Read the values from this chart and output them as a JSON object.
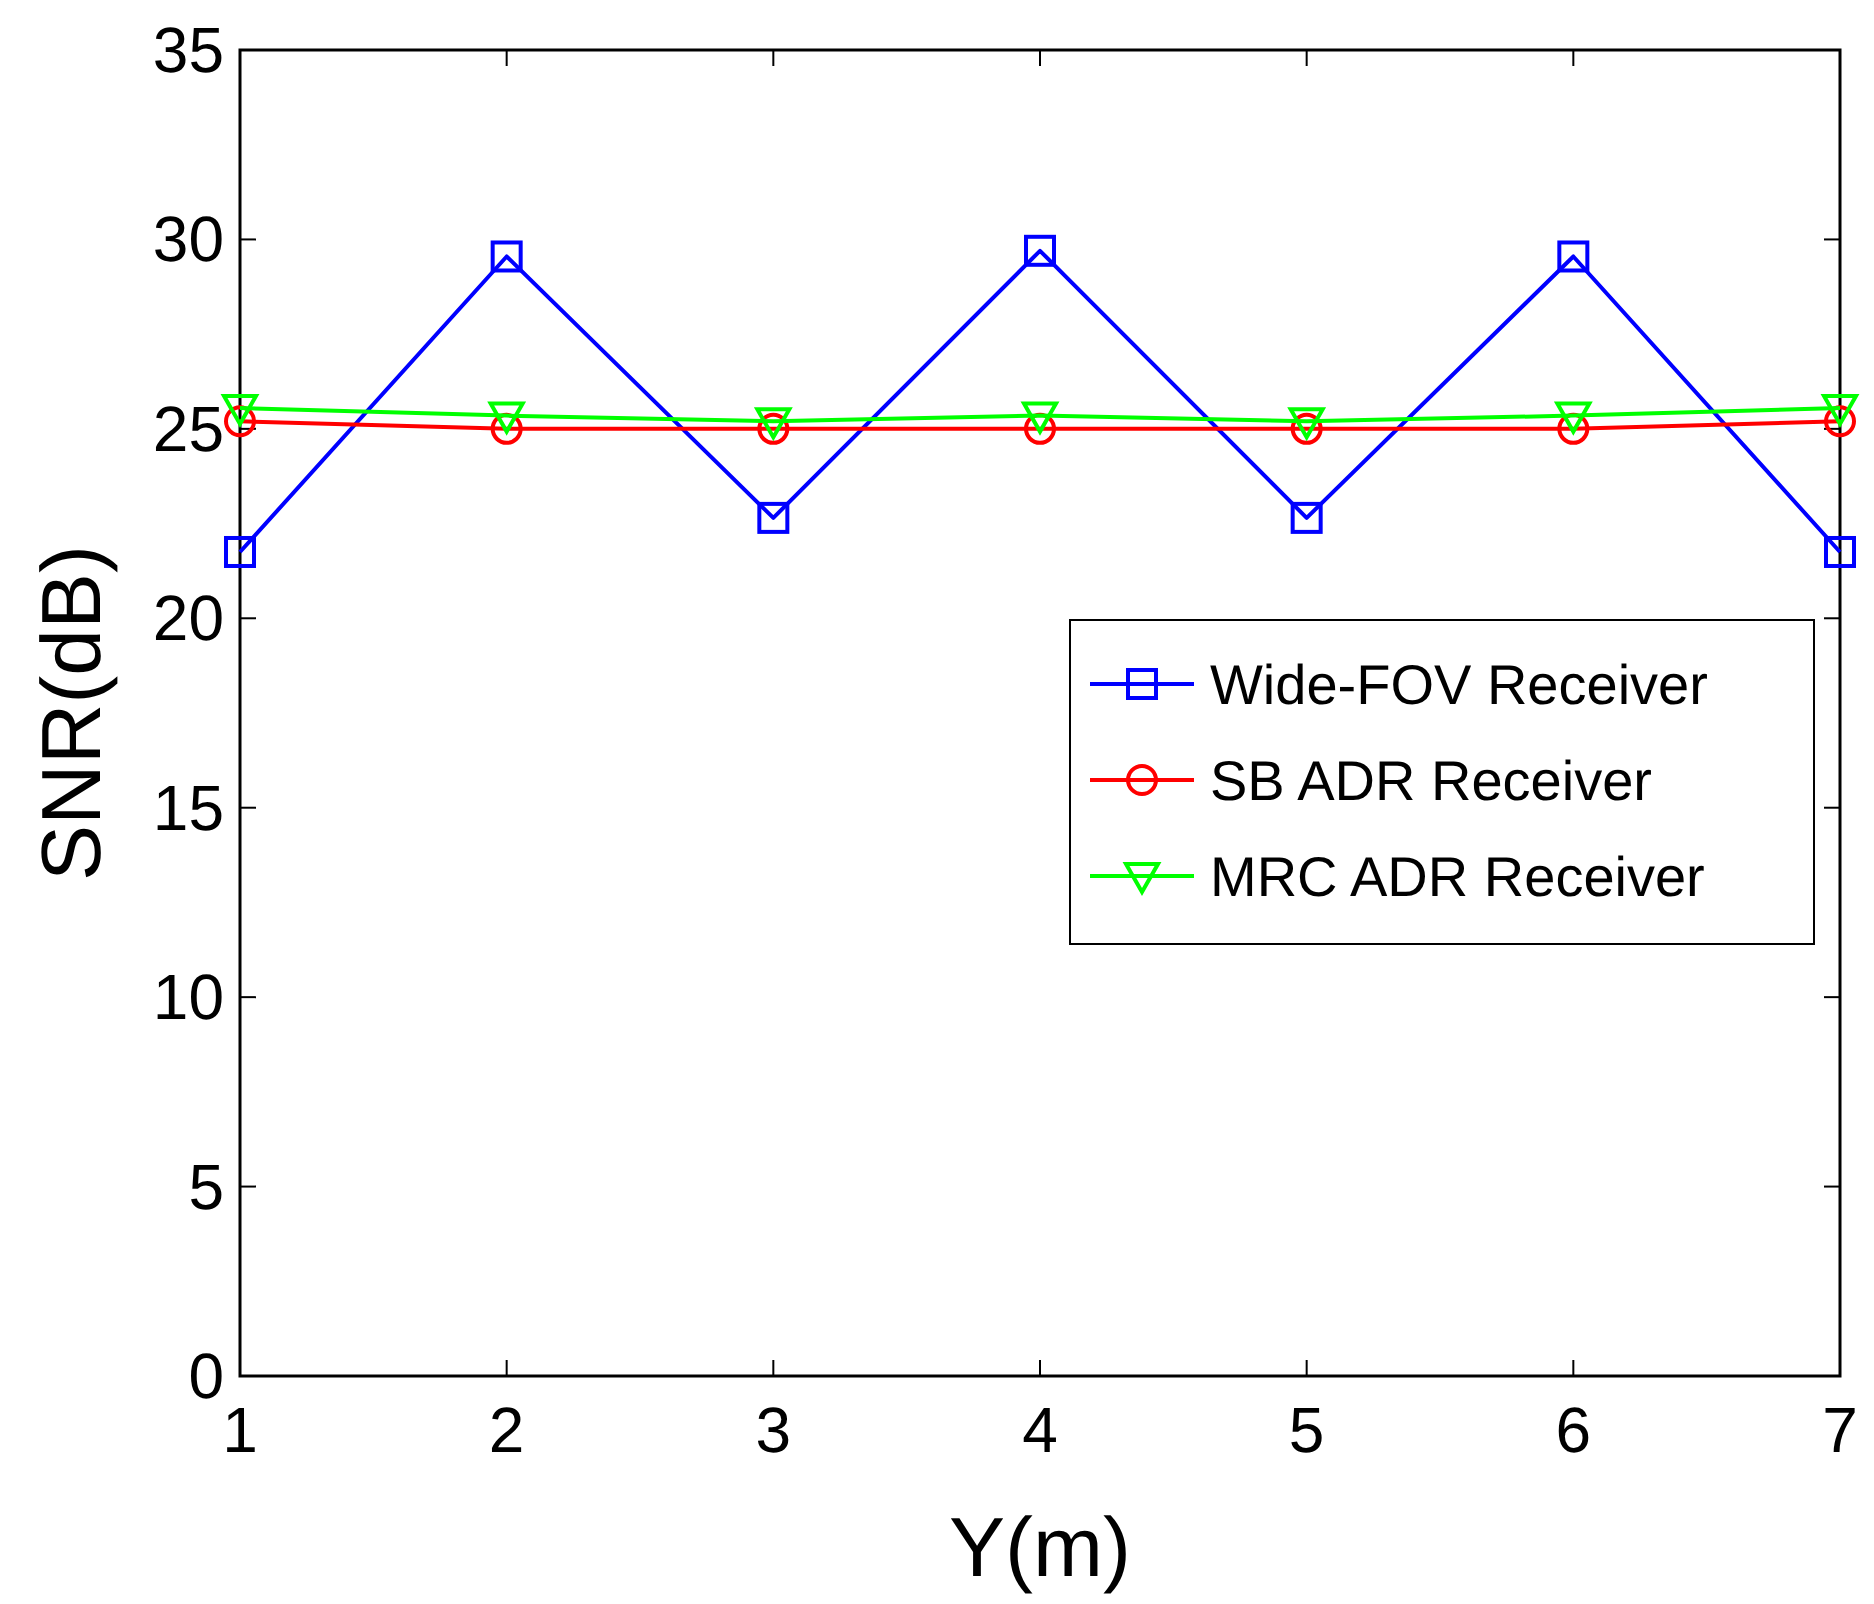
{
  "chart_data": {
    "type": "line",
    "xlabel": "Y(m)",
    "ylabel": "SNR(dB)",
    "x": [
      1,
      2,
      3,
      4,
      5,
      6,
      7
    ],
    "series": [
      {
        "name": "Wide-FOV Receiver",
        "color": "#0000ff",
        "marker": "square",
        "values": [
          21.75,
          29.55,
          22.65,
          29.7,
          22.65,
          29.55,
          21.75
        ]
      },
      {
        "name": "SB ADR Receiver",
        "color": "#ff0000",
        "marker": "circle",
        "values": [
          25.2,
          25.0,
          25.0,
          25.0,
          25.0,
          25.0,
          25.2
        ]
      },
      {
        "name": "MRC ADR Receiver",
        "color": "#00ff00",
        "marker": "triangle",
        "values": [
          25.55,
          25.35,
          25.2,
          25.35,
          25.2,
          25.35,
          25.55
        ]
      }
    ],
    "xlim": [
      1,
      7
    ],
    "xticks": [
      1,
      2,
      3,
      4,
      5,
      6,
      7
    ],
    "ylim": [
      0,
      35
    ],
    "yticks": [
      0,
      5,
      10,
      15,
      20,
      25,
      30,
      35
    ],
    "grid": false,
    "legend": "right",
    "line_style": "solid"
  }
}
